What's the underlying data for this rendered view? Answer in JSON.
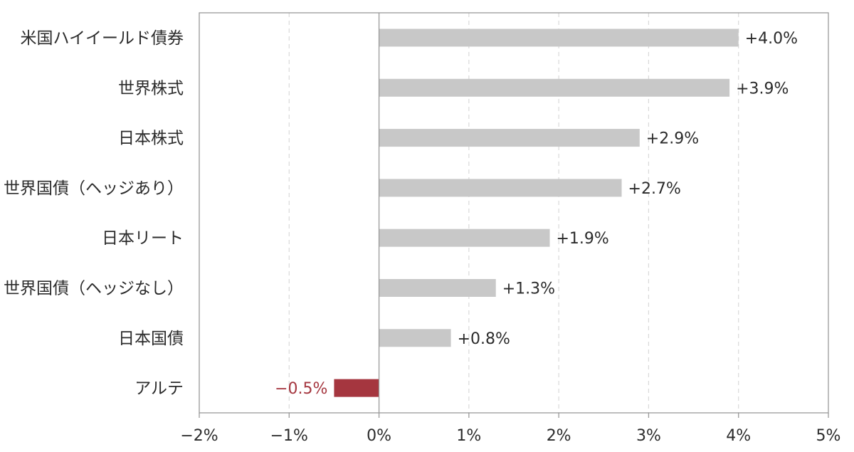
{
  "chart_data": {
    "type": "bar",
    "orientation": "horizontal",
    "categories": [
      "米国ハイイールド債券",
      "世界株式",
      "日本株式",
      "世界国債（ヘッジあり）",
      "日本リート",
      "世界国債（ヘッジなし）",
      "日本国債",
      "アルテ"
    ],
    "values": [
      4.0,
      3.9,
      2.9,
      2.7,
      1.9,
      1.3,
      0.8,
      -0.5
    ],
    "value_labels": [
      "+4.0%",
      "+3.9%",
      "+2.9%",
      "+2.7%",
      "+1.9%",
      "+1.3%",
      "+0.8%",
      "−0.5%"
    ],
    "xlim": [
      -2,
      5
    ],
    "xticks": [
      -2,
      -1,
      0,
      1,
      2,
      3,
      4,
      5
    ],
    "xtick_labels": [
      "−2%",
      "−1%",
      "0%",
      "1%",
      "2%",
      "3%",
      "4%",
      "5%"
    ],
    "title": "",
    "xlabel": "",
    "ylabel": "",
    "grid": "vertical dashed",
    "colors": {
      "positive": "#c8c8c8",
      "negative": "#a5363f",
      "positive_label": "#2b2b2b",
      "negative_label": "#a5363f",
      "axis": "#999999",
      "grid": "#d9d9d9"
    }
  }
}
